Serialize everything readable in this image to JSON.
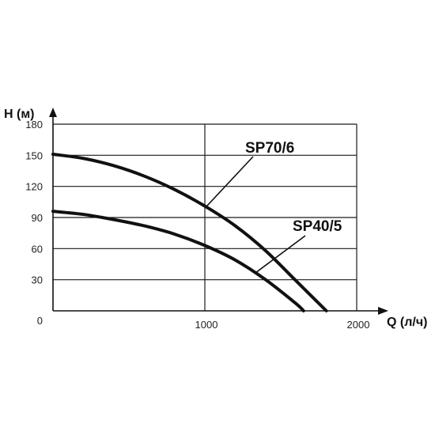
{
  "chart_data": {
    "type": "line",
    "xlabel": "Q (л/ч)",
    "ylabel": "H (м)",
    "xlim": [
      0,
      2000
    ],
    "ylim": [
      0,
      180
    ],
    "x_ticks": [
      "1000",
      "2000"
    ],
    "y_ticks": [
      "0",
      "30",
      "60",
      "90",
      "120",
      "150",
      "180"
    ],
    "grid": true,
    "series": [
      {
        "name": "SP70/6",
        "x": [
          0,
          200,
          400,
          600,
          800,
          1000,
          1200,
          1400,
          1600,
          1800
        ],
        "y": [
          151,
          147,
          140,
          130,
          117,
          101,
          82,
          58,
          29,
          0
        ]
      },
      {
        "name": "SP40/5",
        "x": [
          0,
          200,
          400,
          600,
          800,
          1000,
          1200,
          1400,
          1600,
          1650
        ],
        "y": [
          96,
          93,
          88,
          82,
          74,
          63,
          49,
          30,
          7,
          0
        ]
      }
    ],
    "colors": {
      "grid": "#1a1a1a",
      "curve": "#111111",
      "text": "#111111"
    }
  }
}
